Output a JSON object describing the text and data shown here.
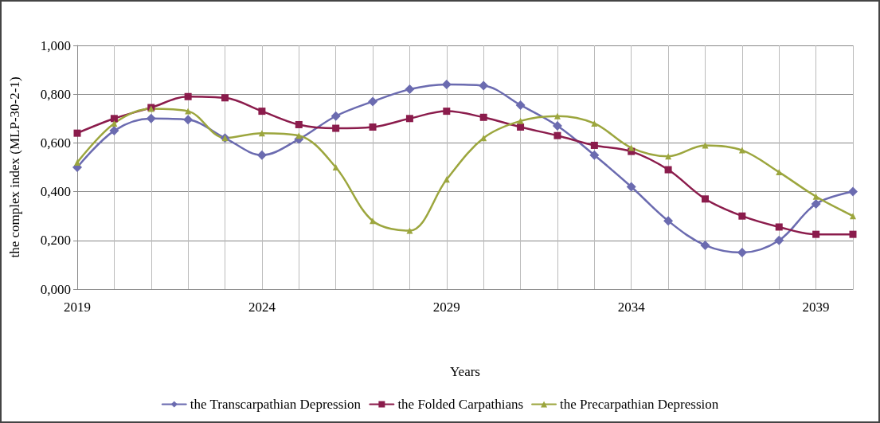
{
  "chart_data": {
    "type": "line",
    "xlabel": "Years",
    "ylabel": "the complex index (MLP-30-2-1)",
    "categories": [
      "2019",
      null,
      null,
      null,
      null,
      "2024",
      null,
      null,
      null,
      null,
      "2029",
      null,
      null,
      null,
      null,
      "2034",
      null,
      null,
      null,
      null,
      "2039",
      null
    ],
    "series": [
      {
        "name": "the Transcarpathian Depression",
        "color": "#6b6bb0",
        "marker": "diamond",
        "values": [
          0.5,
          0.65,
          0.7,
          0.695,
          0.62,
          0.55,
          0.615,
          0.71,
          0.77,
          0.82,
          0.84,
          0.835,
          0.755,
          0.67,
          0.55,
          0.42,
          0.28,
          0.18,
          0.15,
          0.2,
          0.35,
          0.4
        ]
      },
      {
        "name": "the Folded Carpathians",
        "color": "#8b1c4c",
        "marker": "square",
        "values": [
          0.64,
          0.7,
          0.745,
          0.79,
          0.785,
          0.73,
          0.675,
          0.66,
          0.665,
          0.7,
          0.73,
          0.705,
          0.665,
          0.63,
          0.59,
          0.565,
          0.49,
          0.37,
          0.3,
          0.255,
          0.225,
          0.225
        ]
      },
      {
        "name": "the Precarpathian Depression",
        "color": "#9ca63e",
        "marker": "triangle",
        "values": [
          0.52,
          0.68,
          0.74,
          0.73,
          0.62,
          0.64,
          0.63,
          0.5,
          0.28,
          0.24,
          0.45,
          0.62,
          0.69,
          0.71,
          0.68,
          0.58,
          0.545,
          0.59,
          0.57,
          0.48,
          0.38,
          0.3
        ]
      }
    ],
    "ylim": [
      0,
      1
    ],
    "yticks": [
      {
        "value": 0,
        "label": "0,000"
      },
      {
        "value": 0.2,
        "label": "0,200"
      },
      {
        "value": 0.4,
        "label": "0,400"
      },
      {
        "value": 0.6,
        "label": "0,600"
      },
      {
        "value": 0.8,
        "label": "0,800"
      },
      {
        "value": 1,
        "label": "1,000"
      }
    ],
    "grid": true,
    "legend": "bottom",
    "line_style": "solid"
  }
}
